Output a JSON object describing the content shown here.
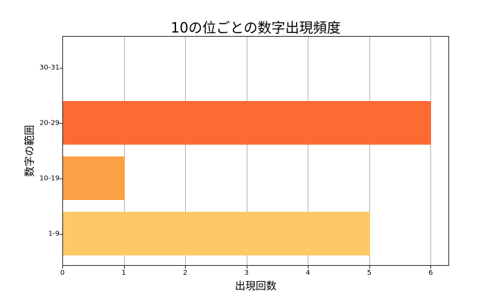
{
  "chart_data": {
    "type": "bar",
    "orientation": "horizontal",
    "title": "10の位ごとの数字出現頻度",
    "xlabel": "出現回数",
    "ylabel": "数字の範囲",
    "categories": [
      "1-9",
      "10-19",
      "20-29",
      "30-31"
    ],
    "values": [
      5,
      1,
      6,
      0
    ],
    "colors": [
      "#fdc966",
      "#fca045",
      "#fd6a33",
      "#fd6a33"
    ],
    "xlim": [
      0,
      6.3
    ],
    "xticks": [
      "0",
      "1",
      "2",
      "3",
      "4",
      "5",
      "6"
    ],
    "grid": "x",
    "legend": null
  }
}
